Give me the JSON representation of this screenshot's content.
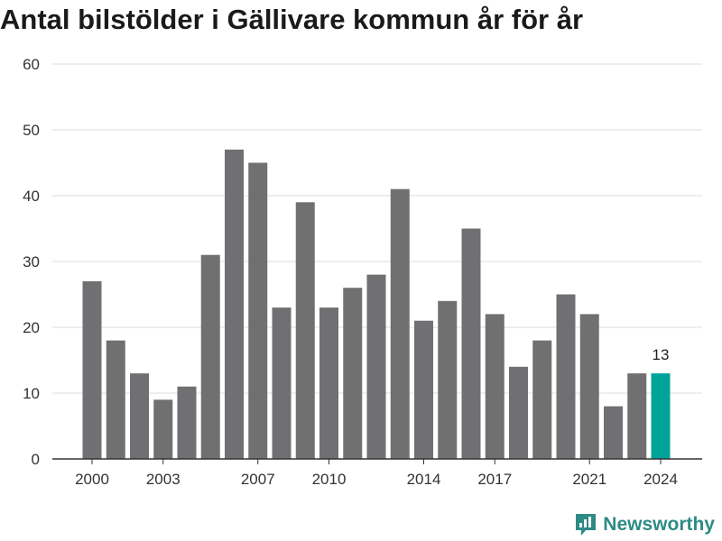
{
  "title": "Antal bilstölder i Gällivare kommun år för år",
  "brand": {
    "name": "Newsworthy",
    "icon": "newsworthy-logo-icon",
    "color": "#2e8a85"
  },
  "colors": {
    "bar": "#707073",
    "highlight": "#00a39a",
    "grid": "#dddddd",
    "axis": "#333333"
  },
  "chart_data": {
    "type": "bar",
    "title": "Antal bilstölder i Gällivare kommun år för år",
    "xlabel": "",
    "ylabel": "",
    "categories": [
      "2000",
      "2001",
      "2002",
      "2003",
      "2004",
      "2005",
      "2006",
      "2007",
      "2008",
      "2009",
      "2010",
      "2011",
      "2012",
      "2013",
      "2014",
      "2015",
      "2016",
      "2017",
      "2018",
      "2019",
      "2020",
      "2021",
      "2022",
      "2023",
      "2024"
    ],
    "values": [
      27,
      18,
      13,
      9,
      11,
      31,
      47,
      45,
      23,
      39,
      23,
      26,
      28,
      41,
      21,
      24,
      35,
      22,
      14,
      18,
      25,
      22,
      8,
      13,
      13
    ],
    "highlight_index": 24,
    "data_labels": [
      {
        "category": "2024",
        "text": "13"
      }
    ],
    "ylim": [
      0,
      60
    ],
    "yticks": [
      0,
      10,
      20,
      30,
      40,
      50,
      60
    ],
    "xtick_labels": [
      "2000",
      "2003",
      "2007",
      "2010",
      "2014",
      "2017",
      "2021",
      "2024"
    ],
    "grid": true,
    "legend": "none"
  }
}
